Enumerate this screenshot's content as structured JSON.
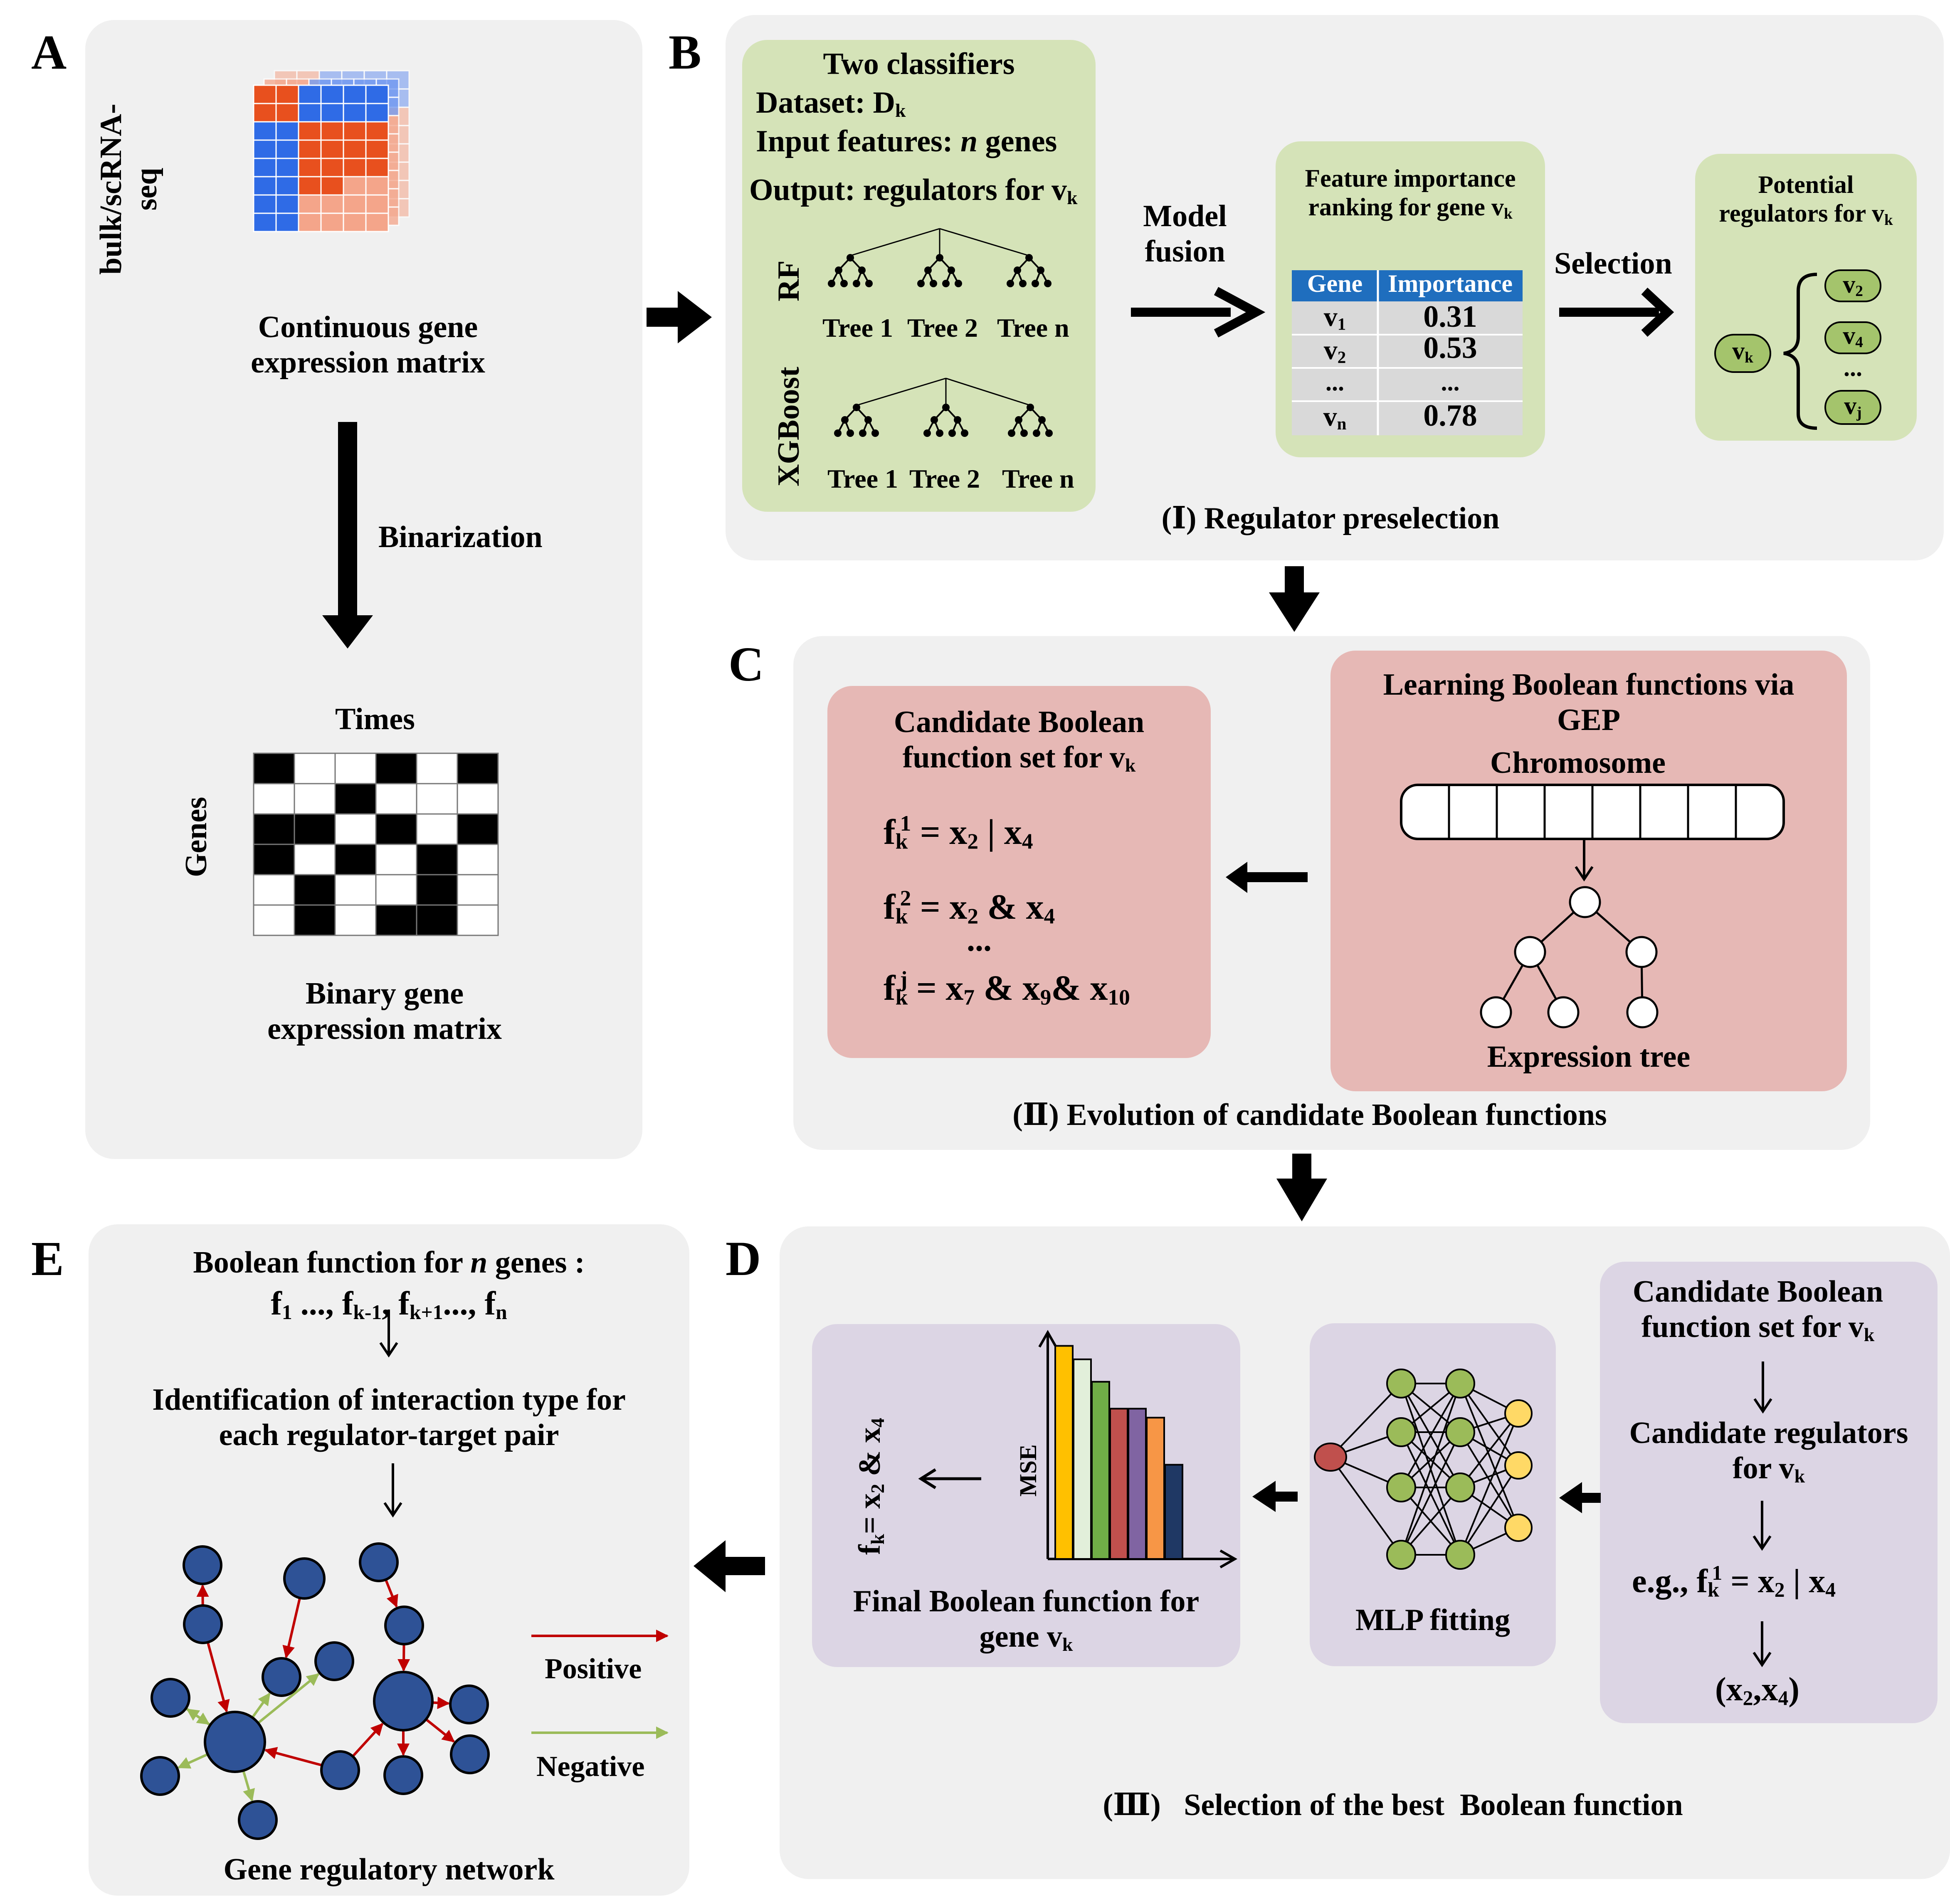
{
  "labels": {
    "A": "A",
    "B": "B",
    "C": "C",
    "D": "D",
    "E": "E"
  },
  "panelA": {
    "ylabel1": "bulk/scRNA-",
    "ylabel2": "seq",
    "continuous1": "Continuous gene",
    "continuous2": "expression matrix",
    "binarization": "Binarization",
    "times": "Times",
    "genes": "Genes",
    "binary1": "Binary gene",
    "binary2": "expression matrix",
    "binary_grid": [
      [
        1,
        0,
        0,
        1,
        0,
        1
      ],
      [
        0,
        0,
        1,
        0,
        0,
        0
      ],
      [
        1,
        1,
        0,
        1,
        0,
        1
      ],
      [
        1,
        0,
        1,
        0,
        1,
        0
      ],
      [
        0,
        1,
        0,
        0,
        1,
        0
      ],
      [
        0,
        1,
        0,
        1,
        1,
        0
      ]
    ],
    "colors": {
      "red": "#e8501e",
      "blue": "#2f6be6",
      "black": "#000000"
    }
  },
  "panelB": {
    "classifier": {
      "title": "Two classifiers",
      "dataset": "Dataset: D",
      "dataset_sub": "k",
      "input_pre": "Input features: ",
      "input_n": "n",
      "input_post": " genes",
      "output": "Output: regulators for v",
      "output_sub": "k",
      "rf": "RF",
      "xgboost": "XGBoost",
      "trees": [
        "Tree 1",
        "Tree 2",
        "Tree n"
      ]
    },
    "model_fusion1": "Model",
    "model_fusion2": "fusion",
    "ranking": {
      "title1": "Feature importance",
      "title2": "ranking for gene v",
      "title_sub": "k",
      "col1": "Gene",
      "col2": "Importance",
      "rows": [
        {
          "gene": "v",
          "sub": "1",
          "imp": "0.31"
        },
        {
          "gene": "v",
          "sub": "2",
          "imp": "0.53"
        },
        {
          "gene": "...",
          "sub": "",
          "imp": "..."
        },
        {
          "gene": "v",
          "sub": "n",
          "imp": "0.78"
        }
      ]
    },
    "selection": "Selection",
    "potential": {
      "title1": "Potential",
      "title2": "regulators for v",
      "title_sub": "k",
      "vk": "v",
      "vk_sub": "k",
      "list": [
        {
          "v": "v",
          "sub": "2"
        },
        {
          "v": "v",
          "sub": "4"
        },
        {
          "v": "...",
          "sub": ""
        },
        {
          "v": "v",
          "sub": "j"
        }
      ]
    },
    "caption": "(Ⅰ) Regulator preselection",
    "header_color": "#1f6ebe"
  },
  "panelC": {
    "candidate": {
      "title1": "Candidate Boolean",
      "title2": "function set for v",
      "title_sub": "k",
      "f1_rhs": " = x",
      "f1_tail": " | x",
      "f2_tail": " & x",
      "f3_tail1": " & x",
      "f3_tail2": "& x",
      "dots": "...",
      "f": "f",
      "k": "k",
      "sup1": "1",
      "sup2": "2",
      "supj": "j",
      "x2": "2",
      "x4": "4",
      "x7": "7",
      "x9": "9",
      "x10": "10"
    },
    "gep": {
      "title1": "Learning Boolean functions via",
      "title2": "GEP",
      "chromosome": "Chromosome",
      "tree": "Expression tree"
    },
    "caption": "(Ⅱ) Evolution of candidate Boolean functions"
  },
  "panelD": {
    "final": {
      "f_rot": "f",
      "f_rot_sub": "k",
      "f_rot_rest": "= x",
      "x2": "2",
      "amp": " & x",
      "x4": "4",
      "mse": "MSE",
      "title1": "Final Boolean function for",
      "title2": "gene v",
      "title_sub": "k"
    },
    "mse_bars": [
      0.95,
      0.89,
      0.79,
      0.67,
      0.67,
      0.63,
      0.42
    ],
    "bar_colors": [
      "#ffc000",
      "#e2efda",
      "#70ad47",
      "#c0504d",
      "#8064a2",
      "#f79646",
      "#1f3864"
    ],
    "mlp": {
      "label": "MLP fitting",
      "colors": {
        "input": "#c0504d",
        "hidden": "#9bbb59",
        "output": "#ffd966"
      }
    },
    "right": {
      "l1": "Candidate Boolean",
      "l2": "function set for v",
      "l2_sub": "k",
      "l3": "Candidate regulators",
      "l4": "for  v",
      "l4_sub": "k",
      "eg": "e.g., f",
      "eg_sub": "k",
      "eg_sup": "1",
      "eg_rest": " = x",
      "eg_x2": "2",
      "eg_or": " | x",
      "eg_x4": "4",
      "pair": "(x",
      "pair_2": "2",
      "pair_mid": ",x",
      "pair_4": "4",
      "pair_end": ")"
    },
    "caption": "(Ⅲ)   Selection of the best  Boolean function"
  },
  "panelE": {
    "l1_pre": "Boolean function for ",
    "l1_n": "n",
    "l1_post": " genes :",
    "l2": "f",
    "l2_parts": [
      "1",
      " ..., f",
      "k-1",
      ", f",
      "k+1",
      "..., f",
      "n"
    ],
    "l3": "Identification of interaction type for",
    "l4": "each regulator-target pair",
    "positive": "Positive",
    "negative": "Negative",
    "network": "Gene regulatory network",
    "colors": {
      "node": "#2e5296",
      "positive": "#c00000",
      "negative": "#9bbb59"
    }
  }
}
